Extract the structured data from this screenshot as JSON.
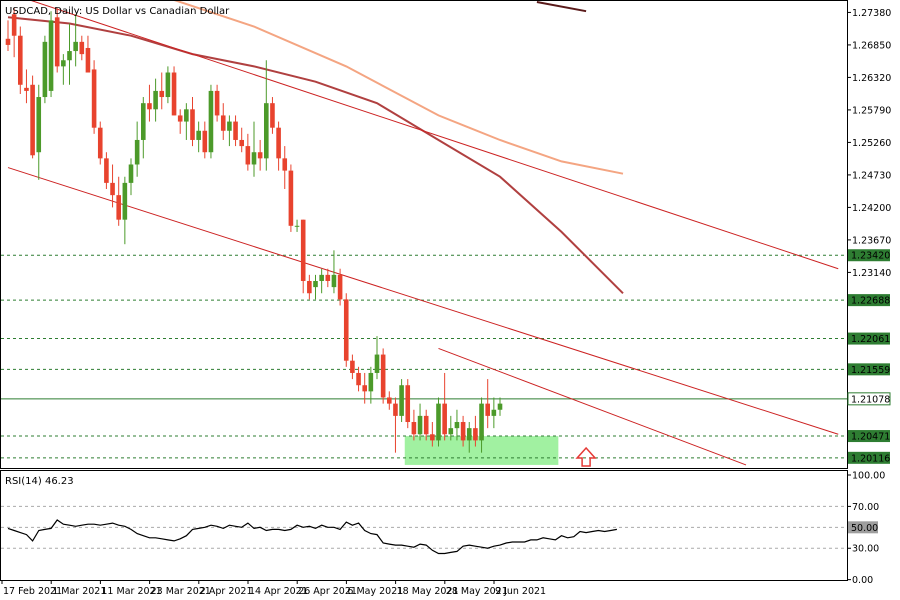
{
  "chart_data": [
    {
      "type": "candlestick",
      "title": "USDCAD, Daily:  US Dollar vs Canadian Dollar",
      "ylim": [
        1.1995,
        1.2755
      ],
      "y_ticks": [
        "1.27380",
        "1.26850",
        "1.26320",
        "1.25790",
        "1.25260",
        "1.24730",
        "1.24200",
        "1.23670",
        "1.23140"
      ],
      "x_ticks": [
        "17 Feb 2021",
        "1 Mar 2021",
        "11 Mar 2021",
        "23 Mar 2021",
        "2 Apr 2021",
        "14 Apr 2021",
        "26 Apr 2021",
        "6 May 2021",
        "18 May 2021",
        "28 May 2021",
        "9 Jun 2021"
      ],
      "x_tick_index": [
        0,
        8,
        16,
        24,
        32,
        40,
        48,
        56,
        64,
        72,
        80
      ],
      "candles": [
        [
          1.2695,
          1.2725,
          1.2675,
          1.2685
        ],
        [
          1.2735,
          1.2745,
          1.2665,
          1.27
        ],
        [
          1.27,
          1.2715,
          1.2605,
          1.262
        ],
        [
          1.2615,
          1.2645,
          1.259,
          1.261
        ],
        [
          1.262,
          1.2635,
          1.25,
          1.2505
        ],
        [
          1.251,
          1.262,
          1.2465,
          1.26
        ],
        [
          1.26,
          1.27,
          1.259,
          1.269
        ],
        [
          1.261,
          1.274,
          1.26,
          1.2725
        ],
        [
          1.273,
          1.2745,
          1.264,
          1.265
        ],
        [
          1.265,
          1.267,
          1.262,
          1.266
        ],
        [
          1.266,
          1.272,
          1.262,
          1.2675
        ],
        [
          1.2675,
          1.2735,
          1.265,
          1.269
        ],
        [
          1.269,
          1.27,
          1.266,
          1.267
        ],
        [
          1.268,
          1.27,
          1.264,
          1.264
        ],
        [
          1.2645,
          1.266,
          1.254,
          1.255
        ],
        [
          1.255,
          1.256,
          1.249,
          1.25
        ],
        [
          1.25,
          1.251,
          1.245,
          1.246
        ],
        [
          1.246,
          1.249,
          1.242,
          1.244
        ],
        [
          1.244,
          1.247,
          1.239,
          1.24
        ],
        [
          1.24,
          1.247,
          1.236,
          1.246
        ],
        [
          1.246,
          1.25,
          1.244,
          1.249
        ],
        [
          1.249,
          1.256,
          1.247,
          1.253
        ],
        [
          1.253,
          1.26,
          1.25,
          1.259
        ],
        [
          1.259,
          1.262,
          1.256,
          1.258
        ],
        [
          1.258,
          1.263,
          1.256,
          1.261
        ],
        [
          1.261,
          1.264,
          1.258,
          1.26
        ],
        [
          1.26,
          1.265,
          1.259,
          1.264
        ],
        [
          1.264,
          1.265,
          1.257,
          1.257
        ],
        [
          1.257,
          1.258,
          1.254,
          1.256
        ],
        [
          1.256,
          1.259,
          1.253,
          1.258
        ],
        [
          1.258,
          1.26,
          1.252,
          1.253
        ],
        [
          1.253,
          1.256,
          1.251,
          1.2545
        ],
        [
          1.2545,
          1.256,
          1.25,
          1.251
        ],
        [
          1.251,
          1.262,
          1.25,
          1.261
        ],
        [
          1.261,
          1.262,
          1.256,
          1.257
        ],
        [
          1.257,
          1.259,
          1.253,
          1.2545
        ],
        [
          1.2545,
          1.257,
          1.252,
          1.256
        ],
        [
          1.256,
          1.257,
          1.252,
          1.253
        ],
        [
          1.253,
          1.255,
          1.251,
          1.252
        ],
        [
          1.252,
          1.254,
          1.248,
          1.249
        ],
        [
          1.249,
          1.256,
          1.247,
          1.251
        ],
        [
          1.251,
          1.253,
          1.248,
          1.25
        ],
        [
          1.25,
          1.266,
          1.248,
          1.259
        ],
        [
          1.259,
          1.26,
          1.254,
          1.255
        ],
        [
          1.255,
          1.256,
          1.248,
          1.25
        ],
        [
          1.25,
          1.252,
          1.245,
          1.248
        ],
        [
          1.248,
          1.249,
          1.238,
          1.239
        ],
        [
          1.239,
          1.24,
          1.238,
          1.239
        ],
        [
          1.24,
          1.24,
          1.228,
          1.23
        ],
        [
          1.23,
          1.231,
          1.227,
          1.228
        ],
        [
          1.229,
          1.231,
          1.227,
          1.23
        ],
        [
          1.23,
          1.232,
          1.228,
          1.231
        ],
        [
          1.231,
          1.232,
          1.229,
          1.23
        ],
        [
          1.229,
          1.235,
          1.228,
          1.231
        ],
        [
          1.231,
          1.232,
          1.226,
          1.227
        ],
        [
          1.227,
          1.228,
          1.216,
          1.217
        ],
        [
          1.217,
          1.218,
          1.214,
          1.215
        ],
        [
          1.215,
          1.216,
          1.212,
          1.213
        ],
        [
          1.213,
          1.215,
          1.21,
          1.212
        ],
        [
          1.212,
          1.216,
          1.21,
          1.215
        ],
        [
          1.215,
          1.221,
          1.214,
          1.218
        ],
        [
          1.218,
          1.219,
          1.21,
          1.211
        ],
        [
          1.211,
          1.212,
          1.209,
          1.21
        ],
        [
          1.21,
          1.211,
          1.202,
          1.208
        ],
        [
          1.208,
          1.214,
          1.207,
          1.213
        ],
        [
          1.213,
          1.214,
          1.206,
          1.207
        ],
        [
          1.207,
          1.209,
          1.204,
          1.205
        ],
        [
          1.205,
          1.21,
          1.204,
          1.208
        ],
        [
          1.208,
          1.209,
          1.204,
          1.205
        ],
        [
          1.205,
          1.207,
          1.203,
          1.204
        ],
        [
          1.204,
          1.211,
          1.203,
          1.21
        ],
        [
          1.21,
          1.215,
          1.204,
          1.205
        ],
        [
          1.205,
          1.208,
          1.204,
          1.206
        ],
        [
          1.206,
          1.209,
          1.204,
          1.207
        ],
        [
          1.207,
          1.208,
          1.203,
          1.204
        ],
        [
          1.204,
          1.207,
          1.202,
          1.206
        ],
        [
          1.206,
          1.208,
          1.203,
          1.204
        ],
        [
          1.204,
          1.211,
          1.202,
          1.21
        ],
        [
          1.21,
          1.214,
          1.206,
          1.208
        ],
        [
          1.208,
          1.211,
          1.206,
          1.209
        ],
        [
          1.209,
          1.211,
          1.208,
          1.21
        ]
      ],
      "moving_averages": [
        {
          "color": "#f4a582",
          "points": [
            [
              25,
              1.2765
            ],
            [
              40,
              1.2715
            ],
            [
              55,
              1.265
            ],
            [
              70,
              1.257
            ],
            [
              80,
              1.253
            ],
            [
              90,
              1.2495
            ],
            [
              100,
              1.2475
            ]
          ]
        },
        {
          "color": "#b04040",
          "points": [
            [
              0,
              1.273
            ],
            [
              10,
              1.272
            ],
            [
              20,
              1.27
            ],
            [
              30,
              1.267
            ],
            [
              40,
              1.265
            ],
            [
              50,
              1.2625
            ],
            [
              60,
              1.259
            ],
            [
              70,
              1.253
            ],
            [
              80,
              1.247
            ],
            [
              90,
              1.238
            ],
            [
              100,
              1.228
            ]
          ]
        },
        {
          "color": "#5a1a1a",
          "points": [
            [
              86,
              1.2755
            ],
            [
              94,
              1.274
            ]
          ]
        }
      ],
      "trend_lines": [
        [
          [
            0,
            1.277
          ],
          [
            135,
            1.232
          ]
        ],
        [
          [
            0,
            1.2485
          ],
          [
            135,
            1.205
          ]
        ],
        [
          [
            70,
            1.219
          ],
          [
            120,
            1.2
          ]
        ]
      ],
      "horizontal_levels": [
        {
          "value": 1.2342,
          "label": "1.23420"
        },
        {
          "value": 1.22688,
          "label": "1.22688"
        },
        {
          "value": 1.22061,
          "label": "1.22061"
        },
        {
          "value": 1.21559,
          "label": "1.21559"
        },
        {
          "value": 1.21078,
          "label": "1.21078",
          "current": true
        },
        {
          "value": 1.20471,
          "label": "1.20471"
        },
        {
          "value": 1.20116,
          "label": "1.20116"
        }
      ],
      "support_zone": {
        "x_range": [
          65,
          89
        ],
        "y_range": [
          1.2,
          1.2047
        ],
        "color": "#90ee90"
      },
      "arrow": {
        "x": 94,
        "direction": "up",
        "color": "#e53935"
      },
      "colors": {
        "bull": "#4c9a2a",
        "bear": "#e8432e",
        "trend": "#cc2222",
        "level": "#2e7d32"
      }
    },
    {
      "type": "line",
      "title": "RSI(14) 46.23",
      "ylim": [
        0,
        100
      ],
      "y_ticks": [
        "100.00",
        "70.00",
        "50.00",
        "30.00",
        "0.00"
      ],
      "levels": [
        70,
        50,
        30
      ],
      "current_tag": "50.00",
      "series": [
        {
          "color": "#000000",
          "values": [
            49,
            47,
            45,
            43,
            37,
            47,
            48,
            49,
            57,
            53,
            52,
            51,
            52,
            53,
            53,
            52,
            53,
            54,
            52,
            51,
            48,
            44,
            42,
            40,
            40,
            39,
            38,
            37,
            39,
            42,
            48,
            49,
            50,
            52,
            51,
            49,
            52,
            51,
            50,
            54,
            49,
            50,
            47,
            48,
            48,
            47,
            48,
            52,
            50,
            51,
            49,
            52,
            50,
            50,
            48,
            55,
            52,
            54,
            47,
            44,
            43,
            35,
            34,
            33,
            33,
            32,
            31,
            34,
            33,
            28,
            25,
            25,
            26,
            27,
            32,
            33,
            32,
            31,
            30,
            32,
            33,
            35,
            36,
            36,
            36,
            38,
            38,
            40,
            39,
            38,
            42,
            40,
            41,
            46,
            45,
            46,
            47,
            46,
            47,
            48
          ]
        }
      ]
    }
  ]
}
